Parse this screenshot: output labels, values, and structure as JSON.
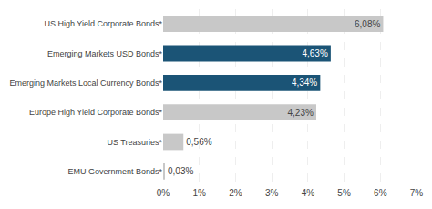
{
  "chart_data": {
    "type": "bar",
    "orientation": "horizontal",
    "categories": [
      "US High Yield Corporate Bonds*",
      "Emerging Markets USD Bonds*",
      "Emerging Markets Local Currency Bonds*",
      "Europe High Yield Corporate Bonds*",
      "US Treasuries*",
      "EMU Government Bonds*"
    ],
    "values": [
      6.08,
      4.63,
      4.34,
      4.23,
      0.56,
      0.03
    ],
    "value_labels": [
      "6,08%",
      "4,63%",
      "4,34%",
      "4,23%",
      "0,56%",
      "0,03%"
    ],
    "data_labels": true,
    "colors": [
      "#c8c8c8",
      "#1b5476",
      "#1b5476",
      "#c8c8c8",
      "#c8c8c8",
      "#c8c8c8"
    ],
    "xlim": [
      0,
      7
    ],
    "xticks": [
      {
        "value": 0,
        "label": "0%"
      },
      {
        "value": 1,
        "label": "1%"
      },
      {
        "value": 2,
        "label": "2%"
      },
      {
        "value": 3,
        "label": "3%"
      },
      {
        "value": 4,
        "label": "4%"
      },
      {
        "value": 5,
        "label": "5%"
      },
      {
        "value": 6,
        "label": "6%"
      },
      {
        "value": 7,
        "label": "7%"
      }
    ],
    "grid": true
  }
}
